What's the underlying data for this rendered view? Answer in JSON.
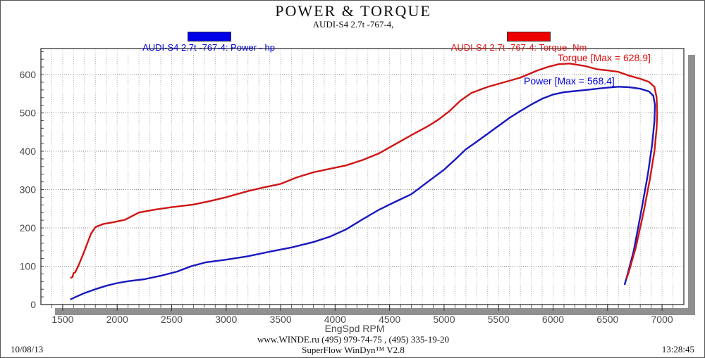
{
  "title": "POWER & TORQUE",
  "subtitle": "AUDI-S4 2.7t -767-4,",
  "legend": {
    "power": {
      "label": "AUDI-S4 2.7t -767-4: Power -  hp",
      "color": "#0000dd",
      "swatch_color": "#0000e8"
    },
    "torque": {
      "label": "AUDI-S4 2.7t -767-4: Torque-  Nm",
      "color": "#dd1111",
      "swatch_color": "#ee0000"
    }
  },
  "annotations": {
    "torque_max": "Torque [Max = 628.9]",
    "power_max": "Power  [Max = 568.4]"
  },
  "footer": {
    "date": "10/08/13",
    "website_line": "www.WINDE.ru  (495) 979-74-75 , (495) 335-19-20",
    "software_line": "SuperFlow WinDyn™ V2.8",
    "time": "13:28:45"
  },
  "chart_data": {
    "type": "line",
    "title": "POWER & TORQUE",
    "subtitle": "AUDI-S4 2.7t -767-4,",
    "xlabel": "EngSpd  RPM",
    "ylabel": "",
    "x_range": [
      1300,
      7200
    ],
    "y_range": [
      0,
      668
    ],
    "x_ticks": [
      1500,
      2000,
      2500,
      3000,
      3500,
      4000,
      4500,
      5000,
      5500,
      6000,
      6500,
      7000
    ],
    "y_ticks": [
      0,
      100,
      200,
      300,
      400,
      500,
      600
    ],
    "x_minor_step": 100,
    "y_minor_tick_step": 20,
    "grid": true,
    "legend_position": "top",
    "series": [
      {
        "name": "Power (hp)",
        "color": "#1818c0",
        "max_label": 568.4,
        "points": [
          [
            1575,
            14
          ],
          [
            1620,
            20
          ],
          [
            1700,
            30
          ],
          [
            1800,
            40
          ],
          [
            1900,
            49
          ],
          [
            2000,
            56
          ],
          [
            2100,
            61
          ],
          [
            2250,
            66
          ],
          [
            2400,
            75
          ],
          [
            2550,
            86
          ],
          [
            2680,
            100
          ],
          [
            2810,
            110
          ],
          [
            3000,
            117
          ],
          [
            3200,
            126
          ],
          [
            3400,
            138
          ],
          [
            3600,
            149
          ],
          [
            3800,
            163
          ],
          [
            3950,
            177
          ],
          [
            4100,
            196
          ],
          [
            4250,
            222
          ],
          [
            4400,
            247
          ],
          [
            4550,
            268
          ],
          [
            4700,
            288
          ],
          [
            4850,
            320
          ],
          [
            5000,
            352
          ],
          [
            5100,
            378
          ],
          [
            5200,
            405
          ],
          [
            5300,
            425
          ],
          [
            5450,
            456
          ],
          [
            5600,
            487
          ],
          [
            5700,
            505
          ],
          [
            5800,
            522
          ],
          [
            5900,
            537
          ],
          [
            6000,
            548
          ],
          [
            6100,
            554
          ],
          [
            6200,
            557
          ],
          [
            6300,
            560
          ],
          [
            6400,
            563
          ],
          [
            6500,
            566
          ],
          [
            6600,
            568.4
          ],
          [
            6700,
            567
          ],
          [
            6800,
            563
          ],
          [
            6880,
            556
          ],
          [
            6920,
            545
          ],
          [
            6935,
            520
          ],
          [
            6930,
            480
          ],
          [
            6910,
            420
          ],
          [
            6870,
            340
          ],
          [
            6810,
            245
          ],
          [
            6740,
            140
          ],
          [
            6680,
            75
          ],
          [
            6658,
            53
          ]
        ]
      },
      {
        "name": "Torque (Nm)",
        "color": "#d01515",
        "max_label": 628.9,
        "points": [
          [
            1575,
            70
          ],
          [
            1590,
            72
          ],
          [
            1600,
            82
          ],
          [
            1615,
            84
          ],
          [
            1650,
            105
          ],
          [
            1700,
            140
          ],
          [
            1760,
            185
          ],
          [
            1800,
            202
          ],
          [
            1870,
            210
          ],
          [
            1970,
            215
          ],
          [
            2070,
            221
          ],
          [
            2200,
            240
          ],
          [
            2350,
            248
          ],
          [
            2500,
            254
          ],
          [
            2700,
            261
          ],
          [
            2850,
            270
          ],
          [
            3000,
            280
          ],
          [
            3200,
            296
          ],
          [
            3350,
            306
          ],
          [
            3500,
            315
          ],
          [
            3650,
            332
          ],
          [
            3800,
            345
          ],
          [
            3950,
            354
          ],
          [
            4100,
            363
          ],
          [
            4250,
            377
          ],
          [
            4400,
            394
          ],
          [
            4550,
            418
          ],
          [
            4700,
            442
          ],
          [
            4850,
            465
          ],
          [
            4950,
            483
          ],
          [
            5050,
            505
          ],
          [
            5150,
            532
          ],
          [
            5250,
            552
          ],
          [
            5400,
            568
          ],
          [
            5550,
            580
          ],
          [
            5700,
            592
          ],
          [
            5850,
            610
          ],
          [
            5950,
            620
          ],
          [
            6050,
            627
          ],
          [
            6150,
            628.9
          ],
          [
            6300,
            622
          ],
          [
            6400,
            614
          ],
          [
            6500,
            611
          ],
          [
            6600,
            607
          ],
          [
            6700,
            597
          ],
          [
            6800,
            589
          ],
          [
            6880,
            581
          ],
          [
            6930,
            568
          ],
          [
            6950,
            540
          ],
          [
            6955,
            500
          ],
          [
            6950,
            460
          ],
          [
            6930,
            400
          ],
          [
            6890,
            330
          ],
          [
            6830,
            240
          ],
          [
            6760,
            150
          ],
          [
            6700,
            90
          ],
          [
            6675,
            68
          ]
        ]
      }
    ]
  }
}
